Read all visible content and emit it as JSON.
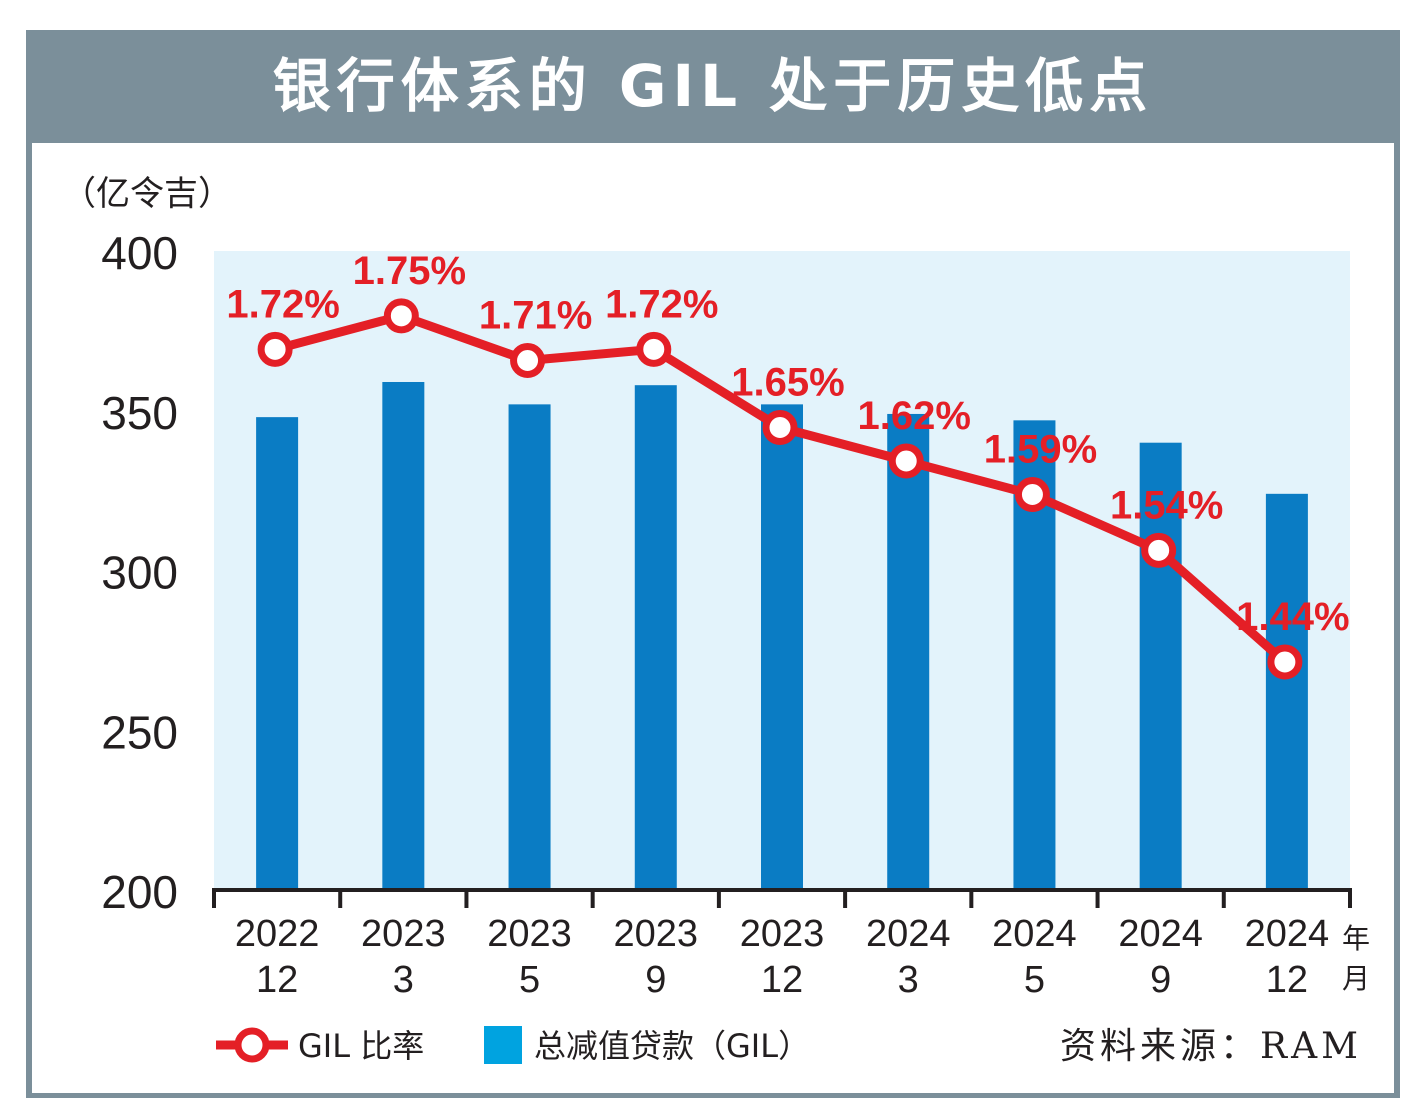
{
  "title": "银行体系的 GIL 处于历史低点",
  "unit": "（亿令吉）",
  "time_unit_year": "年",
  "time_unit_month": "月",
  "source": "资料来源：RAM",
  "colors": {
    "bar": "#0a7cc4",
    "line": "#e41f26",
    "plot_bg": "#e3f3fb",
    "frame": "#7b8f9a",
    "legend_bar": "#00a3e0"
  },
  "chart_data": {
    "type": "bar",
    "categories": [
      {
        "year": "2022",
        "month": "12"
      },
      {
        "year": "2023",
        "month": "3"
      },
      {
        "year": "2023",
        "month": "5"
      },
      {
        "year": "2023",
        "month": "9"
      },
      {
        "year": "2023",
        "month": "12"
      },
      {
        "year": "2024",
        "month": "3"
      },
      {
        "year": "2024",
        "month": "5"
      },
      {
        "year": "2024",
        "month": "9"
      },
      {
        "year": "2024",
        "month": "12"
      }
    ],
    "ylim": [
      200,
      400
    ],
    "yticks": [
      "200",
      "250",
      "300",
      "350",
      "400"
    ],
    "series": [
      {
        "name": "总减值贷款（GIL）",
        "type": "bar",
        "values": [
          348,
          359,
          352,
          358,
          352,
          349,
          347,
          340,
          324
        ]
      },
      {
        "name": "GIL 比率",
        "type": "line",
        "values": [
          1.72,
          1.75,
          1.71,
          1.72,
          1.65,
          1.62,
          1.59,
          1.54,
          1.44
        ],
        "labels": [
          "1.72%",
          "1.75%",
          "1.71%",
          "1.72%",
          "1.65%",
          "1.62%",
          "1.59%",
          "1.54%",
          "1.44%"
        ]
      }
    ]
  }
}
